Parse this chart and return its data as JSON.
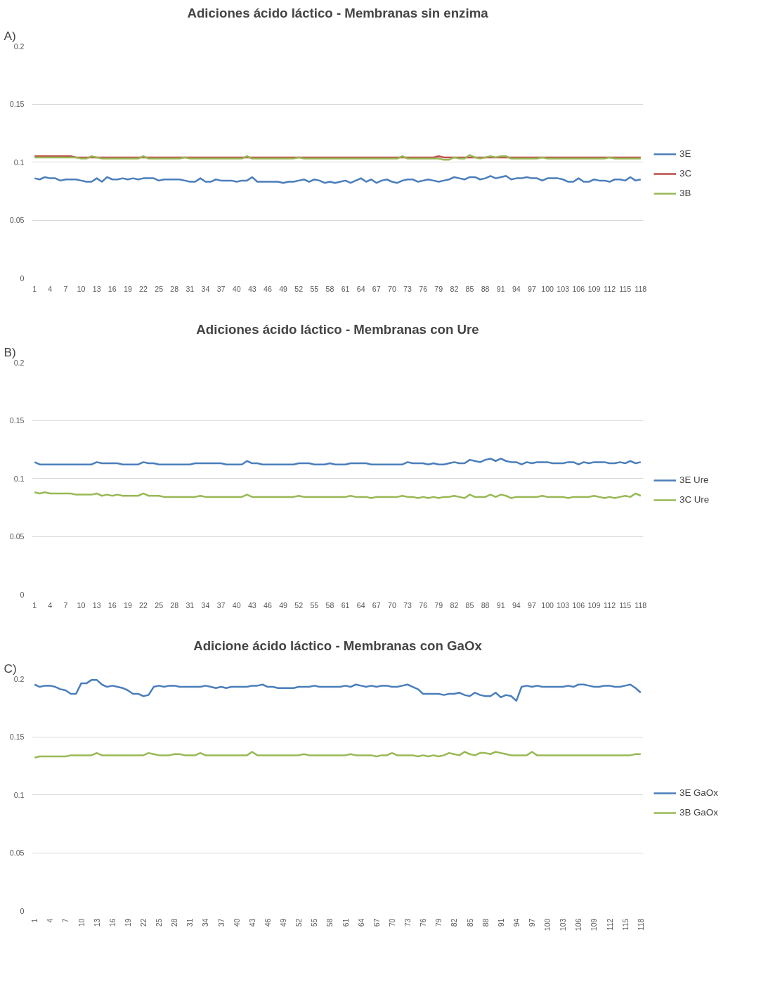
{
  "chart_data": [
    {
      "type": "line",
      "title": "Adiciones ácido láctico - Membranas sin enzima",
      "annotations": [
        "A)"
      ],
      "legend": "right",
      "grid": "y",
      "marker": "none",
      "line_style": "solid",
      "ylim": [
        0,
        0.2
      ],
      "yticks": [
        0,
        0.05,
        0.1,
        0.15,
        0.2
      ],
      "categories": [
        "1",
        null,
        null,
        "4",
        null,
        null,
        "7",
        null,
        null,
        "10",
        null,
        null,
        "13",
        null,
        null,
        "16",
        null,
        null,
        "19",
        null,
        null,
        "22",
        null,
        null,
        "25",
        null,
        null,
        "28",
        null,
        null,
        "31",
        null,
        null,
        "34",
        null,
        null,
        "37",
        null,
        null,
        "40",
        null,
        null,
        "43",
        null,
        null,
        "46",
        null,
        null,
        "49",
        null,
        null,
        "52",
        null,
        null,
        "55",
        null,
        null,
        "58",
        null,
        null,
        "61",
        null,
        null,
        "64",
        null,
        null,
        "67",
        null,
        null,
        "70",
        null,
        null,
        "73",
        null,
        null,
        "76",
        null,
        null,
        "79",
        null,
        null,
        "82",
        null,
        null,
        "85",
        null,
        null,
        "88",
        null,
        null,
        "91",
        null,
        null,
        "94",
        null,
        null,
        "97",
        null,
        null,
        "100",
        null,
        null,
        "103",
        null,
        null,
        "106",
        null,
        null,
        "109",
        null,
        null,
        "112",
        null,
        null,
        "115",
        null,
        null,
        "118"
      ],
      "series": [
        {
          "name": "3E",
          "color": "#4a7ebb",
          "values": [
            0.086,
            0.085,
            0.087,
            0.086,
            0.086,
            0.084,
            0.085,
            0.085,
            0.085,
            0.084,
            0.083,
            0.083,
            0.086,
            0.083,
            0.087,
            0.085,
            0.085,
            0.086,
            0.085,
            0.086,
            0.085,
            0.086,
            0.086,
            0.086,
            0.084,
            0.085,
            0.085,
            0.085,
            0.085,
            0.084,
            0.083,
            0.083,
            0.086,
            0.083,
            0.083,
            0.085,
            0.084,
            0.084,
            0.084,
            0.083,
            0.084,
            0.084,
            0.087,
            0.083,
            0.083,
            0.083,
            0.083,
            0.083,
            0.082,
            0.083,
            0.083,
            0.084,
            0.085,
            0.083,
            0.085,
            0.084,
            0.082,
            0.083,
            0.082,
            0.083,
            0.084,
            0.082,
            0.084,
            0.086,
            0.083,
            0.085,
            0.082,
            0.084,
            0.085,
            0.083,
            0.082,
            0.084,
            0.085,
            0.085,
            0.083,
            0.084,
            0.085,
            0.084,
            0.083,
            0.084,
            0.085,
            0.087,
            0.086,
            0.085,
            0.087,
            0.087,
            0.085,
            0.086,
            0.088,
            0.086,
            0.087,
            0.088,
            0.085,
            0.086,
            0.086,
            0.087,
            0.086,
            0.086,
            0.084,
            0.086,
            0.086,
            0.086,
            0.085,
            0.083,
            0.083,
            0.086,
            0.083,
            0.083,
            0.085,
            0.084,
            0.084,
            0.083,
            0.085,
            0.085,
            0.084,
            0.087,
            0.084,
            0.085
          ]
        },
        {
          "name": "3C",
          "color": "#be4b48",
          "values": [
            0.105,
            0.105,
            0.105,
            0.105,
            0.105,
            0.105,
            0.105,
            0.105,
            0.104,
            0.104,
            0.104,
            0.104,
            0.104,
            0.104,
            0.104,
            0.104,
            0.104,
            0.104,
            0.104,
            0.104,
            0.104,
            0.104,
            0.104,
            0.104,
            0.104,
            0.104,
            0.104,
            0.104,
            0.104,
            0.104,
            0.104,
            0.104,
            0.104,
            0.104,
            0.104,
            0.104,
            0.104,
            0.104,
            0.104,
            0.104,
            0.104,
            0.104,
            0.104,
            0.104,
            0.104,
            0.104,
            0.104,
            0.104,
            0.104,
            0.104,
            0.104,
            0.104,
            0.104,
            0.104,
            0.104,
            0.104,
            0.104,
            0.104,
            0.104,
            0.104,
            0.104,
            0.104,
            0.104,
            0.104,
            0.104,
            0.104,
            0.104,
            0.104,
            0.104,
            0.104,
            0.104,
            0.104,
            0.104,
            0.104,
            0.104,
            0.104,
            0.104,
            0.104,
            0.105,
            0.104,
            0.104,
            0.104,
            0.104,
            0.104,
            0.104,
            0.104,
            0.104,
            0.104,
            0.104,
            0.104,
            0.104,
            0.104,
            0.104,
            0.104,
            0.104,
            0.104,
            0.104,
            0.104,
            0.104,
            0.104,
            0.104,
            0.104,
            0.104,
            0.104,
            0.104,
            0.104,
            0.104,
            0.104,
            0.104,
            0.104,
            0.104,
            0.104,
            0.104,
            0.104,
            0.104,
            0.104,
            0.104,
            0.104
          ]
        },
        {
          "name": "3B",
          "color": "#98b954",
          "values": [
            0.104,
            0.104,
            0.104,
            0.104,
            0.104,
            0.104,
            0.104,
            0.104,
            0.104,
            0.103,
            0.103,
            0.105,
            0.104,
            0.103,
            0.103,
            0.103,
            0.103,
            0.103,
            0.103,
            0.103,
            0.103,
            0.105,
            0.103,
            0.103,
            0.103,
            0.103,
            0.103,
            0.103,
            0.103,
            0.104,
            0.103,
            0.103,
            0.103,
            0.103,
            0.103,
            0.103,
            0.103,
            0.103,
            0.103,
            0.103,
            0.103,
            0.105,
            0.103,
            0.103,
            0.103,
            0.103,
            0.103,
            0.103,
            0.103,
            0.103,
            0.103,
            0.104,
            0.103,
            0.103,
            0.103,
            0.103,
            0.103,
            0.103,
            0.103,
            0.103,
            0.103,
            0.103,
            0.103,
            0.103,
            0.103,
            0.103,
            0.103,
            0.103,
            0.103,
            0.103,
            0.103,
            0.105,
            0.103,
            0.103,
            0.103,
            0.103,
            0.103,
            0.103,
            0.103,
            0.102,
            0.102,
            0.104,
            0.103,
            0.103,
            0.106,
            0.104,
            0.103,
            0.104,
            0.105,
            0.104,
            0.105,
            0.105,
            0.103,
            0.103,
            0.103,
            0.103,
            0.103,
            0.103,
            0.104,
            0.103,
            0.103,
            0.103,
            0.103,
            0.103,
            0.103,
            0.103,
            0.103,
            0.103,
            0.103,
            0.103,
            0.103,
            0.104,
            0.103,
            0.103,
            0.103,
            0.103,
            0.103,
            0.103
          ]
        }
      ]
    },
    {
      "type": "line",
      "title": "Adiciones ácido láctico - Membranas con Ure",
      "annotations": [
        "B)"
      ],
      "legend": "right",
      "grid": "y",
      "marker": "none",
      "line_style": "solid",
      "ylim": [
        0,
        0.2
      ],
      "yticks": [
        0,
        0.05,
        0.1,
        0.15,
        0.2
      ],
      "categories": [
        "1",
        null,
        null,
        "4",
        null,
        null,
        "7",
        null,
        null,
        "10",
        null,
        null,
        "13",
        null,
        null,
        "16",
        null,
        null,
        "19",
        null,
        null,
        "22",
        null,
        null,
        "25",
        null,
        null,
        "28",
        null,
        null,
        "31",
        null,
        null,
        "34",
        null,
        null,
        "37",
        null,
        null,
        "40",
        null,
        null,
        "43",
        null,
        null,
        "46",
        null,
        null,
        "49",
        null,
        null,
        "52",
        null,
        null,
        "55",
        null,
        null,
        "58",
        null,
        null,
        "61",
        null,
        null,
        "64",
        null,
        null,
        "67",
        null,
        null,
        "70",
        null,
        null,
        "73",
        null,
        null,
        "76",
        null,
        null,
        "79",
        null,
        null,
        "82",
        null,
        null,
        "85",
        null,
        null,
        "88",
        null,
        null,
        "91",
        null,
        null,
        "94",
        null,
        null,
        "97",
        null,
        null,
        "100",
        null,
        null,
        "103",
        null,
        null,
        "106",
        null,
        null,
        "109",
        null,
        null,
        "112",
        null,
        null,
        "115",
        null,
        null,
        "118"
      ],
      "series": [
        {
          "name": "3E Ure",
          "color": "#4a7ebb",
          "values": [
            0.114,
            0.112,
            0.112,
            0.112,
            0.112,
            0.112,
            0.112,
            0.112,
            0.112,
            0.112,
            0.112,
            0.112,
            0.114,
            0.113,
            0.113,
            0.113,
            0.113,
            0.112,
            0.112,
            0.112,
            0.112,
            0.114,
            0.113,
            0.113,
            0.112,
            0.112,
            0.112,
            0.112,
            0.112,
            0.112,
            0.112,
            0.113,
            0.113,
            0.113,
            0.113,
            0.113,
            0.113,
            0.112,
            0.112,
            0.112,
            0.112,
            0.115,
            0.113,
            0.113,
            0.112,
            0.112,
            0.112,
            0.112,
            0.112,
            0.112,
            0.112,
            0.113,
            0.113,
            0.113,
            0.112,
            0.112,
            0.112,
            0.113,
            0.112,
            0.112,
            0.112,
            0.113,
            0.113,
            0.113,
            0.113,
            0.112,
            0.112,
            0.112,
            0.112,
            0.112,
            0.112,
            0.112,
            0.114,
            0.113,
            0.113,
            0.113,
            0.112,
            0.113,
            0.112,
            0.112,
            0.113,
            0.114,
            0.113,
            0.113,
            0.116,
            0.115,
            0.114,
            0.116,
            0.117,
            0.115,
            0.117,
            0.115,
            0.114,
            0.114,
            0.112,
            0.114,
            0.113,
            0.114,
            0.114,
            0.114,
            0.113,
            0.113,
            0.113,
            0.114,
            0.114,
            0.112,
            0.114,
            0.113,
            0.114,
            0.114,
            0.114,
            0.113,
            0.113,
            0.114,
            0.113,
            0.115,
            0.113,
            0.114
          ]
        },
        {
          "name": "3C Ure",
          "color": "#98b954",
          "values": [
            0.088,
            0.087,
            0.088,
            0.087,
            0.087,
            0.087,
            0.087,
            0.087,
            0.086,
            0.086,
            0.086,
            0.086,
            0.087,
            0.085,
            0.086,
            0.085,
            0.086,
            0.085,
            0.085,
            0.085,
            0.085,
            0.087,
            0.085,
            0.085,
            0.085,
            0.084,
            0.084,
            0.084,
            0.084,
            0.084,
            0.084,
            0.084,
            0.085,
            0.084,
            0.084,
            0.084,
            0.084,
            0.084,
            0.084,
            0.084,
            0.084,
            0.086,
            0.084,
            0.084,
            0.084,
            0.084,
            0.084,
            0.084,
            0.084,
            0.084,
            0.084,
            0.085,
            0.084,
            0.084,
            0.084,
            0.084,
            0.084,
            0.084,
            0.084,
            0.084,
            0.084,
            0.085,
            0.084,
            0.084,
            0.084,
            0.083,
            0.084,
            0.084,
            0.084,
            0.084,
            0.084,
            0.085,
            0.084,
            0.084,
            0.083,
            0.084,
            0.083,
            0.084,
            0.083,
            0.084,
            0.084,
            0.085,
            0.084,
            0.083,
            0.086,
            0.084,
            0.084,
            0.084,
            0.086,
            0.084,
            0.086,
            0.085,
            0.083,
            0.084,
            0.084,
            0.084,
            0.084,
            0.084,
            0.085,
            0.084,
            0.084,
            0.084,
            0.084,
            0.083,
            0.084,
            0.084,
            0.084,
            0.084,
            0.085,
            0.084,
            0.083,
            0.084,
            0.083,
            0.084,
            0.085,
            0.084,
            0.087,
            0.085
          ]
        }
      ]
    },
    {
      "type": "line",
      "title": "Adicione ácido láctico - Membranas con GaOx",
      "annotations": [
        "C)"
      ],
      "legend": "right",
      "grid": "y",
      "marker": "none",
      "line_style": "solid",
      "ylim": [
        0,
        0.2
      ],
      "yticks": [
        0,
        0.05,
        0.1,
        0.15,
        0.2
      ],
      "categories": [
        "1",
        null,
        null,
        "4",
        null,
        null,
        "7",
        null,
        null,
        "10",
        null,
        null,
        "13",
        null,
        null,
        "16",
        null,
        null,
        "19",
        null,
        null,
        "22",
        null,
        null,
        "25",
        null,
        null,
        "28",
        null,
        null,
        "31",
        null,
        null,
        "34",
        null,
        null,
        "37",
        null,
        null,
        "40",
        null,
        null,
        "43",
        null,
        null,
        "46",
        null,
        null,
        "49",
        null,
        null,
        "52",
        null,
        null,
        "55",
        null,
        null,
        "58",
        null,
        null,
        "61",
        null,
        null,
        "64",
        null,
        null,
        "67",
        null,
        null,
        "70",
        null,
        null,
        "73",
        null,
        null,
        "76",
        null,
        null,
        "79",
        null,
        null,
        "82",
        null,
        null,
        "85",
        null,
        null,
        "88",
        null,
        null,
        "91",
        null,
        null,
        "94",
        null,
        null,
        "97",
        null,
        null,
        "100",
        null,
        null,
        "103",
        null,
        null,
        "106",
        null,
        null,
        "109",
        null,
        null,
        "112",
        null,
        null,
        "115",
        null,
        null,
        "118"
      ],
      "series": [
        {
          "name": "3E GaOx",
          "color": "#4a7ebb",
          "values": [
            0.195,
            0.193,
            0.194,
            0.194,
            0.193,
            0.191,
            0.19,
            0.187,
            0.187,
            0.196,
            0.196,
            0.199,
            0.199,
            0.195,
            0.193,
            0.194,
            0.193,
            0.192,
            0.19,
            0.187,
            0.187,
            0.185,
            0.186,
            0.193,
            0.194,
            0.193,
            0.194,
            0.194,
            0.193,
            0.193,
            0.193,
            0.193,
            0.193,
            0.194,
            0.193,
            0.192,
            0.193,
            0.192,
            0.193,
            0.193,
            0.193,
            0.193,
            0.194,
            0.194,
            0.195,
            0.193,
            0.193,
            0.192,
            0.192,
            0.192,
            0.192,
            0.193,
            0.193,
            0.193,
            0.194,
            0.193,
            0.193,
            0.193,
            0.193,
            0.193,
            0.194,
            0.193,
            0.195,
            0.194,
            0.193,
            0.194,
            0.193,
            0.194,
            0.194,
            0.193,
            0.193,
            0.194,
            0.195,
            0.193,
            0.191,
            0.187,
            0.187,
            0.187,
            0.187,
            0.186,
            0.187,
            0.187,
            0.188,
            0.186,
            0.185,
            0.188,
            0.186,
            0.185,
            0.185,
            0.188,
            0.184,
            0.186,
            0.185,
            0.181,
            0.193,
            0.194,
            0.193,
            0.194,
            0.193,
            0.193,
            0.193,
            0.193,
            0.193,
            0.194,
            0.193,
            0.195,
            0.195,
            0.194,
            0.193,
            0.193,
            0.194,
            0.194,
            0.193,
            0.193,
            0.194,
            0.195,
            0.192,
            0.188
          ]
        },
        {
          "name": "3B GaOx",
          "color": "#98b954",
          "values": [
            0.132,
            0.133,
            0.133,
            0.133,
            0.133,
            0.133,
            0.133,
            0.134,
            0.134,
            0.134,
            0.134,
            0.134,
            0.136,
            0.134,
            0.134,
            0.134,
            0.134,
            0.134,
            0.134,
            0.134,
            0.134,
            0.134,
            0.136,
            0.135,
            0.134,
            0.134,
            0.134,
            0.135,
            0.135,
            0.134,
            0.134,
            0.134,
            0.136,
            0.134,
            0.134,
            0.134,
            0.134,
            0.134,
            0.134,
            0.134,
            0.134,
            0.134,
            0.137,
            0.134,
            0.134,
            0.134,
            0.134,
            0.134,
            0.134,
            0.134,
            0.134,
            0.134,
            0.135,
            0.134,
            0.134,
            0.134,
            0.134,
            0.134,
            0.134,
            0.134,
            0.134,
            0.135,
            0.134,
            0.134,
            0.134,
            0.134,
            0.133,
            0.134,
            0.134,
            0.136,
            0.134,
            0.134,
            0.134,
            0.134,
            0.133,
            0.134,
            0.133,
            0.134,
            0.133,
            0.134,
            0.136,
            0.135,
            0.134,
            0.137,
            0.135,
            0.134,
            0.136,
            0.136,
            0.135,
            0.137,
            0.136,
            0.135,
            0.134,
            0.134,
            0.134,
            0.134,
            0.137,
            0.134,
            0.134,
            0.134,
            0.134,
            0.134,
            0.134,
            0.134,
            0.134,
            0.134,
            0.134,
            0.134,
            0.134,
            0.134,
            0.134,
            0.134,
            0.134,
            0.134,
            0.134,
            0.134,
            0.135,
            0.135
          ]
        }
      ]
    }
  ]
}
